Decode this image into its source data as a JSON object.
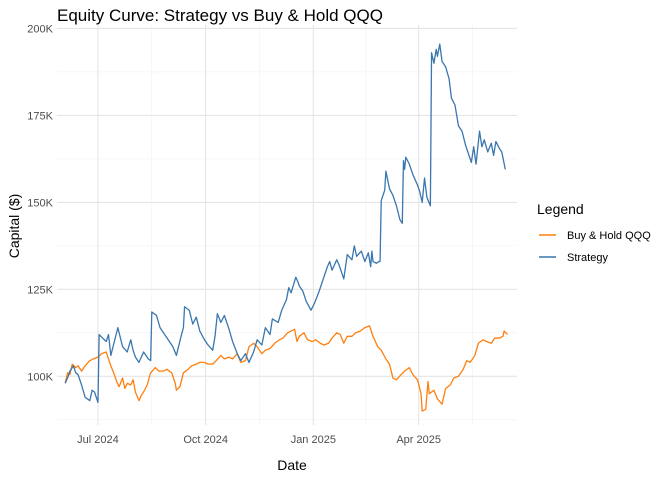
{
  "chart_data": {
    "type": "line",
    "title": "Equity Curve: Strategy vs Buy & Hold QQQ",
    "xlabel": "Date",
    "ylabel": "Capital ($)",
    "x_ticks": [
      {
        "date": "2024-07-01",
        "label": "Jul 2024"
      },
      {
        "date": "2024-10-01",
        "label": "Oct 2024"
      },
      {
        "date": "2025-01-01",
        "label": "Jan 2025"
      },
      {
        "date": "2025-04-01",
        "label": "Apr 2025"
      }
    ],
    "xlim": [
      "2024-05-27",
      "2025-06-24"
    ],
    "y_ticks": [
      {
        "value": 100000,
        "label": "100K"
      },
      {
        "value": 125000,
        "label": "125K"
      },
      {
        "value": 150000,
        "label": "150K"
      },
      {
        "value": 175000,
        "label": "175K"
      },
      {
        "value": 200000,
        "label": "200K"
      }
    ],
    "ylim": [
      86000,
      201000
    ],
    "grid": true,
    "legend": {
      "title": "Legend",
      "position": "right",
      "entries": [
        "Buy & Hold QQQ",
        "Strategy"
      ]
    },
    "series": [
      {
        "name": "Buy & Hold QQQ",
        "color": "#ff7f0e",
        "points": [
          [
            "2024-06-03",
            98000
          ],
          [
            "2024-06-05",
            101000
          ],
          [
            "2024-06-07",
            100500
          ],
          [
            "2024-06-09",
            103500
          ],
          [
            "2024-06-12",
            102500
          ],
          [
            "2024-06-14",
            103000
          ],
          [
            "2024-06-17",
            101500
          ],
          [
            "2024-06-20",
            103000
          ],
          [
            "2024-06-24",
            104500
          ],
          [
            "2024-06-27",
            105000
          ],
          [
            "2024-07-01",
            105500
          ],
          [
            "2024-07-04",
            106500
          ],
          [
            "2024-07-08",
            107000
          ],
          [
            "2024-07-10",
            105000
          ],
          [
            "2024-07-12",
            103000
          ],
          [
            "2024-07-15",
            100500
          ],
          [
            "2024-07-17",
            98500
          ],
          [
            "2024-07-19",
            97000
          ],
          [
            "2024-07-22",
            99500
          ],
          [
            "2024-07-24",
            96500
          ],
          [
            "2024-07-26",
            98000
          ],
          [
            "2024-07-29",
            97500
          ],
          [
            "2024-07-31",
            99000
          ],
          [
            "2024-08-02",
            95500
          ],
          [
            "2024-08-05",
            93000
          ],
          [
            "2024-08-07",
            94500
          ],
          [
            "2024-08-09",
            95500
          ],
          [
            "2024-08-12",
            97500
          ],
          [
            "2024-08-15",
            101000
          ],
          [
            "2024-08-19",
            102500
          ],
          [
            "2024-08-22",
            101500
          ],
          [
            "2024-08-26",
            101500
          ],
          [
            "2024-08-29",
            102000
          ],
          [
            "2024-09-02",
            101000
          ],
          [
            "2024-09-05",
            98000
          ],
          [
            "2024-09-06",
            96000
          ],
          [
            "2024-09-09",
            97000
          ],
          [
            "2024-09-12",
            101000
          ],
          [
            "2024-09-16",
            102000
          ],
          [
            "2024-09-19",
            103000
          ],
          [
            "2024-09-23",
            103500
          ],
          [
            "2024-09-26",
            104000
          ],
          [
            "2024-09-30",
            104000
          ],
          [
            "2024-10-03",
            103500
          ],
          [
            "2024-10-07",
            103500
          ],
          [
            "2024-10-10",
            104500
          ],
          [
            "2024-10-14",
            106000
          ],
          [
            "2024-10-17",
            105000
          ],
          [
            "2024-10-21",
            105500
          ],
          [
            "2024-10-24",
            105000
          ],
          [
            "2024-10-28",
            106500
          ],
          [
            "2024-10-31",
            104000
          ],
          [
            "2024-11-04",
            104500
          ],
          [
            "2024-11-07",
            108500
          ],
          [
            "2024-11-11",
            109500
          ],
          [
            "2024-11-14",
            108500
          ],
          [
            "2024-11-18",
            106500
          ],
          [
            "2024-11-21",
            107500
          ],
          [
            "2024-11-25",
            108000
          ],
          [
            "2024-11-29",
            109500
          ],
          [
            "2024-12-03",
            110500
          ],
          [
            "2024-12-06",
            111000
          ],
          [
            "2024-12-10",
            112500
          ],
          [
            "2024-12-13",
            113000
          ],
          [
            "2024-12-16",
            113500
          ],
          [
            "2024-12-18",
            110000
          ],
          [
            "2024-12-20",
            111500
          ],
          [
            "2024-12-24",
            112500
          ],
          [
            "2024-12-27",
            110500
          ],
          [
            "2024-12-31",
            110000
          ],
          [
            "2025-01-03",
            110500
          ],
          [
            "2025-01-07",
            109500
          ],
          [
            "2025-01-10",
            109000
          ],
          [
            "2025-01-14",
            109500
          ],
          [
            "2025-01-17",
            111000
          ],
          [
            "2025-01-21",
            112500
          ],
          [
            "2025-01-24",
            112000
          ],
          [
            "2025-01-27",
            109500
          ],
          [
            "2025-01-30",
            111500
          ],
          [
            "2025-02-03",
            111500
          ],
          [
            "2025-02-06",
            112500
          ],
          [
            "2025-02-10",
            113000
          ],
          [
            "2025-02-14",
            114000
          ],
          [
            "2025-02-18",
            114500
          ],
          [
            "2025-02-21",
            111500
          ],
          [
            "2025-02-25",
            108500
          ],
          [
            "2025-02-28",
            107500
          ],
          [
            "2025-03-04",
            105000
          ],
          [
            "2025-03-07",
            103500
          ],
          [
            "2025-03-10",
            99500
          ],
          [
            "2025-03-13",
            99000
          ],
          [
            "2025-03-17",
            100500
          ],
          [
            "2025-03-20",
            101500
          ],
          [
            "2025-03-24",
            102500
          ],
          [
            "2025-03-27",
            100500
          ],
          [
            "2025-03-31",
            99000
          ],
          [
            "2025-04-03",
            95000
          ],
          [
            "2025-04-04",
            90000
          ],
          [
            "2025-04-07",
            90500
          ],
          [
            "2025-04-09",
            98500
          ],
          [
            "2025-04-10",
            95000
          ],
          [
            "2025-04-14",
            96000
          ],
          [
            "2025-04-17",
            93500
          ],
          [
            "2025-04-21",
            92000
          ],
          [
            "2025-04-24",
            96500
          ],
          [
            "2025-04-28",
            97500
          ],
          [
            "2025-05-01",
            99500
          ],
          [
            "2025-05-05",
            100000
          ],
          [
            "2025-05-09",
            102000
          ],
          [
            "2025-05-12",
            104500
          ],
          [
            "2025-05-15",
            104000
          ],
          [
            "2025-05-19",
            106000
          ],
          [
            "2025-05-22",
            109500
          ],
          [
            "2025-05-26",
            110500
          ],
          [
            "2025-05-29",
            110000
          ],
          [
            "2025-06-02",
            109500
          ],
          [
            "2025-06-05",
            111000
          ],
          [
            "2025-06-09",
            111000
          ],
          [
            "2025-06-12",
            111500
          ],
          [
            "2025-06-13",
            113000
          ],
          [
            "2025-06-16",
            112000
          ]
        ]
      },
      {
        "name": "Strategy",
        "color": "#3a76af",
        "points": [
          [
            "2024-06-03",
            98000
          ],
          [
            "2024-06-05",
            99500
          ],
          [
            "2024-06-07",
            101500
          ],
          [
            "2024-06-10",
            103000
          ],
          [
            "2024-06-12",
            101000
          ],
          [
            "2024-06-14",
            100500
          ],
          [
            "2024-06-17",
            97500
          ],
          [
            "2024-06-20",
            94000
          ],
          [
            "2024-06-24",
            93000
          ],
          [
            "2024-06-26",
            96000
          ],
          [
            "2024-06-28",
            95500
          ],
          [
            "2024-07-01",
            92500
          ],
          [
            "2024-07-02",
            112000
          ],
          [
            "2024-07-05",
            111000
          ],
          [
            "2024-07-08",
            110000
          ],
          [
            "2024-07-10",
            112000
          ],
          [
            "2024-07-12",
            106000
          ],
          [
            "2024-07-15",
            110000
          ],
          [
            "2024-07-18",
            114000
          ],
          [
            "2024-07-22",
            108500
          ],
          [
            "2024-07-26",
            107000
          ],
          [
            "2024-07-29",
            110500
          ],
          [
            "2024-07-31",
            107500
          ],
          [
            "2024-08-02",
            105500
          ],
          [
            "2024-08-05",
            104000
          ],
          [
            "2024-08-09",
            107000
          ],
          [
            "2024-08-13",
            105000
          ],
          [
            "2024-08-15",
            104500
          ],
          [
            "2024-08-16",
            118500
          ],
          [
            "2024-08-20",
            117500
          ],
          [
            "2024-08-23",
            114000
          ],
          [
            "2024-08-27",
            112000
          ],
          [
            "2024-08-30",
            110500
          ],
          [
            "2024-09-03",
            108500
          ],
          [
            "2024-09-06",
            106000
          ],
          [
            "2024-09-10",
            111500
          ],
          [
            "2024-09-12",
            114000
          ],
          [
            "2024-09-13",
            120000
          ],
          [
            "2024-09-17",
            119000
          ],
          [
            "2024-09-20",
            115000
          ],
          [
            "2024-09-23",
            117000
          ],
          [
            "2024-09-26",
            113000
          ],
          [
            "2024-09-30",
            110500
          ],
          [
            "2024-10-03",
            109000
          ],
          [
            "2024-10-07",
            107500
          ],
          [
            "2024-10-09",
            111500
          ],
          [
            "2024-10-11",
            118000
          ],
          [
            "2024-10-14",
            115500
          ],
          [
            "2024-10-17",
            117500
          ],
          [
            "2024-10-21",
            113500
          ],
          [
            "2024-10-24",
            110000
          ],
          [
            "2024-10-28",
            106500
          ],
          [
            "2024-10-31",
            104500
          ],
          [
            "2024-11-04",
            106500
          ],
          [
            "2024-11-07",
            104000
          ],
          [
            "2024-11-11",
            107000
          ],
          [
            "2024-11-14",
            110500
          ],
          [
            "2024-11-18",
            109000
          ],
          [
            "2024-11-21",
            114000
          ],
          [
            "2024-11-25",
            112000
          ],
          [
            "2024-11-27",
            116500
          ],
          [
            "2024-12-02",
            115500
          ],
          [
            "2024-12-05",
            119000
          ],
          [
            "2024-12-09",
            122000
          ],
          [
            "2024-12-11",
            125500
          ],
          [
            "2024-12-13",
            124000
          ],
          [
            "2024-12-17",
            128500
          ],
          [
            "2024-12-19",
            127000
          ],
          [
            "2024-12-20",
            126000
          ],
          [
            "2024-12-23",
            124500
          ],
          [
            "2024-12-26",
            121500
          ],
          [
            "2024-12-30",
            119000
          ],
          [
            "2025-01-02",
            121000
          ],
          [
            "2025-01-06",
            124500
          ],
          [
            "2025-01-08",
            126500
          ],
          [
            "2025-01-10",
            128500
          ],
          [
            "2025-01-13",
            131500
          ],
          [
            "2025-01-15",
            133000
          ],
          [
            "2025-01-17",
            130500
          ],
          [
            "2025-01-21",
            133500
          ],
          [
            "2025-01-23",
            132000
          ],
          [
            "2025-01-27",
            128000
          ],
          [
            "2025-01-30",
            135000
          ],
          [
            "2025-02-03",
            133500
          ],
          [
            "2025-02-05",
            137500
          ],
          [
            "2025-02-07",
            134500
          ],
          [
            "2025-02-11",
            136000
          ],
          [
            "2025-02-14",
            133000
          ],
          [
            "2025-02-17",
            135500
          ],
          [
            "2025-02-19",
            131500
          ],
          [
            "2025-02-20",
            136000
          ],
          [
            "2025-02-21",
            133000
          ],
          [
            "2025-02-24",
            132500
          ],
          [
            "2025-02-26",
            133000
          ],
          [
            "2025-02-27",
            133000
          ],
          [
            "2025-02-28",
            150500
          ],
          [
            "2025-03-03",
            153500
          ],
          [
            "2025-03-04",
            159000
          ],
          [
            "2025-03-07",
            154000
          ],
          [
            "2025-03-10",
            152000
          ],
          [
            "2025-03-13",
            149000
          ],
          [
            "2025-03-16",
            145000
          ],
          [
            "2025-03-18",
            144000
          ],
          [
            "2025-03-19",
            162000
          ],
          [
            "2025-03-20",
            159500
          ],
          [
            "2025-03-21",
            163000
          ],
          [
            "2025-03-24",
            161000
          ],
          [
            "2025-03-27",
            158000
          ],
          [
            "2025-03-31",
            155000
          ],
          [
            "2025-04-02",
            153000
          ],
          [
            "2025-04-04",
            150000
          ],
          [
            "2025-04-06",
            157000
          ],
          [
            "2025-04-08",
            151500
          ],
          [
            "2025-04-11",
            149000
          ],
          [
            "2025-04-12",
            193000
          ],
          [
            "2025-04-14",
            190000
          ],
          [
            "2025-04-16",
            194000
          ],
          [
            "2025-04-17",
            192000
          ],
          [
            "2025-04-19",
            195500
          ],
          [
            "2025-04-21",
            190500
          ],
          [
            "2025-04-24",
            189000
          ],
          [
            "2025-04-27",
            185500
          ],
          [
            "2025-04-29",
            180000
          ],
          [
            "2025-05-02",
            178000
          ],
          [
            "2025-05-05",
            172000
          ],
          [
            "2025-05-08",
            170500
          ],
          [
            "2025-05-11",
            166500
          ],
          [
            "2025-05-14",
            163500
          ],
          [
            "2025-05-16",
            161500
          ],
          [
            "2025-05-18",
            166000
          ],
          [
            "2025-05-20",
            161000
          ],
          [
            "2025-05-23",
            170500
          ],
          [
            "2025-05-25",
            166000
          ],
          [
            "2025-05-27",
            168000
          ],
          [
            "2025-05-30",
            164500
          ],
          [
            "2025-06-02",
            167000
          ],
          [
            "2025-06-04",
            163500
          ],
          [
            "2025-06-06",
            167500
          ],
          [
            "2025-06-09",
            165500
          ],
          [
            "2025-06-11",
            164500
          ],
          [
            "2025-06-14",
            159500
          ]
        ]
      }
    ]
  }
}
